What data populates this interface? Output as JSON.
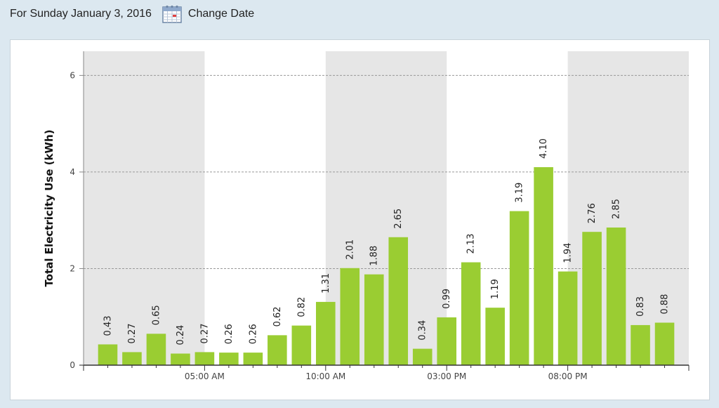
{
  "header": {
    "date_text": "For Sunday January 3, 2016",
    "change_label": "Change Date",
    "icon": "calendar-icon"
  },
  "colors": {
    "bar": "#9acd32",
    "band": "#e6e6e6",
    "grid": "#999999",
    "background": "#dce8f0"
  },
  "chart_data": {
    "type": "bar",
    "title": "",
    "xlabel": "",
    "ylabel": "Total Electricity Use (kWh)",
    "ylim": [
      0,
      6.5
    ],
    "y_ticks": [
      0,
      2,
      4,
      6
    ],
    "x_ticks": [
      {
        "hour": 5,
        "label": "05:00 AM"
      },
      {
        "hour": 10,
        "label": "10:00 AM"
      },
      {
        "hour": 15,
        "label": "03:00 PM"
      },
      {
        "hour": 20,
        "label": "08:00 PM"
      }
    ],
    "x_range_hours": [
      0,
      25
    ],
    "shaded_hour_bands": [
      [
        0,
        5
      ],
      [
        10,
        15
      ],
      [
        20,
        25
      ]
    ],
    "grid": true,
    "categories": [
      "1",
      "2",
      "3",
      "4",
      "5",
      "6",
      "7",
      "8",
      "9",
      "10",
      "11",
      "12",
      "13",
      "14",
      "15",
      "16",
      "17",
      "18",
      "19",
      "20",
      "21",
      "22",
      "23",
      "24"
    ],
    "values": [
      0.43,
      0.27,
      0.65,
      0.24,
      0.27,
      0.26,
      0.26,
      0.62,
      0.82,
      1.31,
      2.01,
      1.88,
      2.65,
      0.34,
      0.99,
      2.13,
      1.19,
      3.19,
      4.1,
      1.94,
      2.76,
      2.85,
      0.83,
      0.88
    ],
    "value_labels": [
      "0.43",
      "0.27",
      "0.65",
      "0.24",
      "0.27",
      "0.26",
      "0.26",
      "0.62",
      "0.82",
      "1.31",
      "2.01",
      "1.88",
      "2.65",
      "0.34",
      "0.99",
      "2.13",
      "1.19",
      "3.19",
      "4.10",
      "1.94",
      "2.76",
      "2.85",
      "0.83",
      "0.88"
    ]
  }
}
